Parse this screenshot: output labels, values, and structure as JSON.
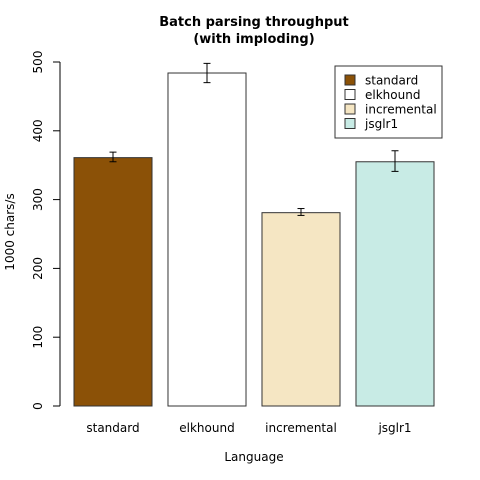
{
  "chart_data": {
    "type": "bar",
    "title": [
      "Batch parsing throughput",
      "(with imploding)"
    ],
    "xlabel": "Language",
    "ylabel": "1000 chars/s",
    "ylim": [
      0,
      500
    ],
    "yticks": [
      0,
      100,
      200,
      300,
      400,
      500
    ],
    "categories": [
      "standard",
      "elkhound",
      "incremental",
      "jsglr1"
    ],
    "values": [
      361,
      484,
      281,
      355
    ],
    "errors": [
      [
        355,
        369
      ],
      [
        470,
        498
      ],
      [
        277,
        287
      ],
      [
        341,
        371
      ]
    ],
    "colors": [
      "#8b5107",
      "#ffffff",
      "#f5e6c3",
      "#c8ebe5"
    ],
    "legend": {
      "placement": "top-right",
      "entries": [
        "standard",
        "elkhound",
        "incremental",
        "jsglr1"
      ]
    },
    "grid": false
  }
}
